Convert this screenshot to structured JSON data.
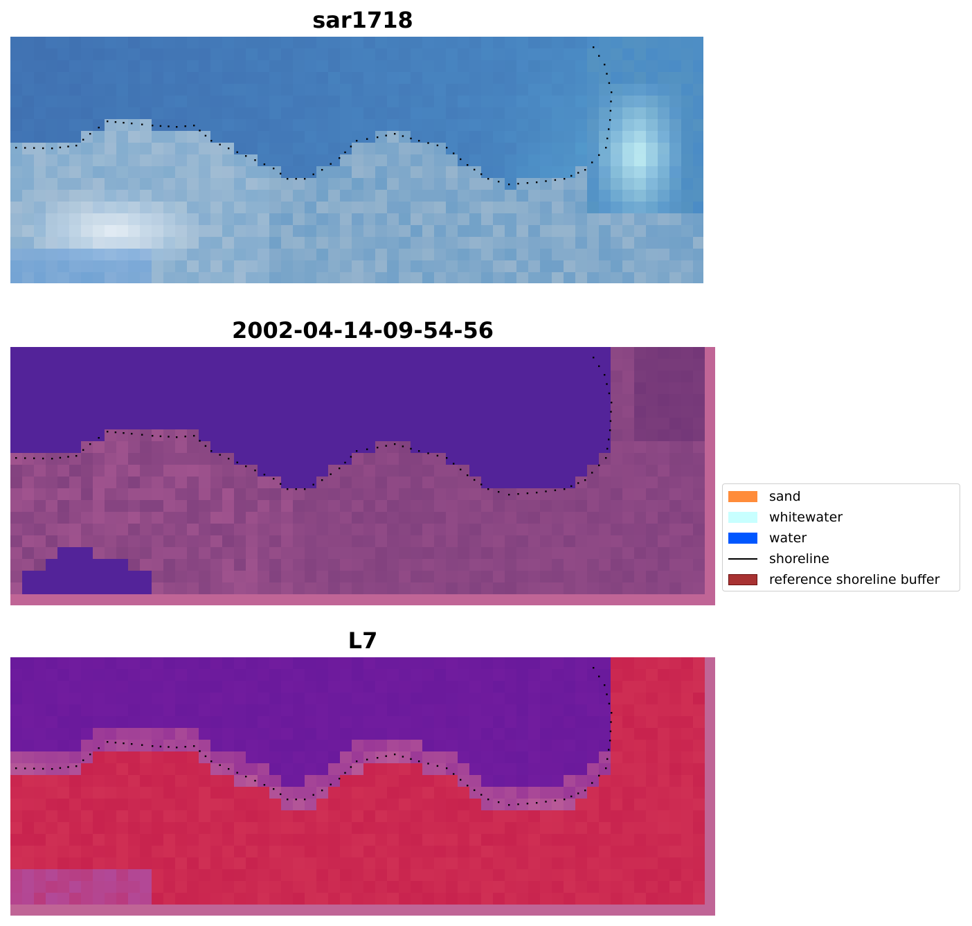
{
  "panels": [
    {
      "title": "sar1718",
      "palette": "rgb",
      "colors": {
        "dark": "#3f6fb0",
        "mid": "#4b8cc6",
        "light": "#dfe9f2",
        "highlight": "#c8f3f6"
      }
    },
    {
      "title": "2002-04-14-09-54-56",
      "palette": "classified",
      "colors": {
        "water": "#532399",
        "land": "#82427f",
        "land_light": "#b45f98",
        "border": "#c06596"
      }
    },
    {
      "title": "L7",
      "palette": "index",
      "colors": {
        "water": "#6a1a9c",
        "land": "#c8234e",
        "transition": "#b85a98",
        "border": "#c06596"
      }
    }
  ],
  "legend": {
    "items": [
      {
        "label": "sand",
        "type": "patch",
        "color": "#ff8c3a"
      },
      {
        "label": "whitewater",
        "type": "patch",
        "color": "#c8ffff"
      },
      {
        "label": "water",
        "type": "patch",
        "color": "#0057ff"
      },
      {
        "label": "shoreline",
        "type": "line",
        "color": "#000000"
      },
      {
        "label": "reference shoreline buffer",
        "type": "patch",
        "color": "#a83232"
      }
    ]
  }
}
